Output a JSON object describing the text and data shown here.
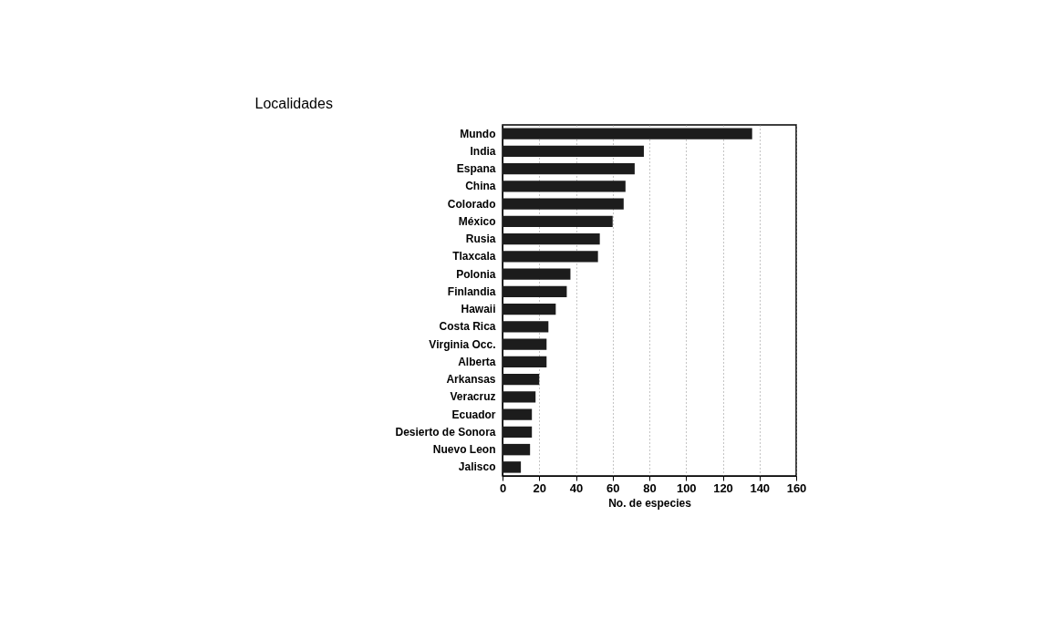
{
  "chart_data": {
    "type": "bar",
    "orientation": "horizontal",
    "ylabel": "Localidades",
    "xlabel": "No. de especies",
    "categories": [
      "Mundo",
      "India",
      "Espana",
      "China",
      "Colorado",
      "México",
      "Rusia",
      "Tlaxcala",
      "Polonia",
      "Finlandia",
      "Hawaii",
      "Costa Rica",
      "Virginia Occ.",
      "Alberta",
      "Arkansas",
      "Veracruz",
      "Ecuador",
      "Desierto de Sonora",
      "Nuevo Leon",
      "Jalisco"
    ],
    "values": [
      136,
      77,
      72,
      67,
      66,
      60,
      53,
      52,
      37,
      35,
      29,
      25,
      24,
      24,
      20,
      18,
      16,
      16,
      15,
      10
    ],
    "color": "#1c1c1c",
    "xlim": [
      0,
      160
    ],
    "xticks": [
      0,
      20,
      40,
      60,
      80,
      100,
      120,
      140,
      160
    ],
    "grid": "x"
  }
}
